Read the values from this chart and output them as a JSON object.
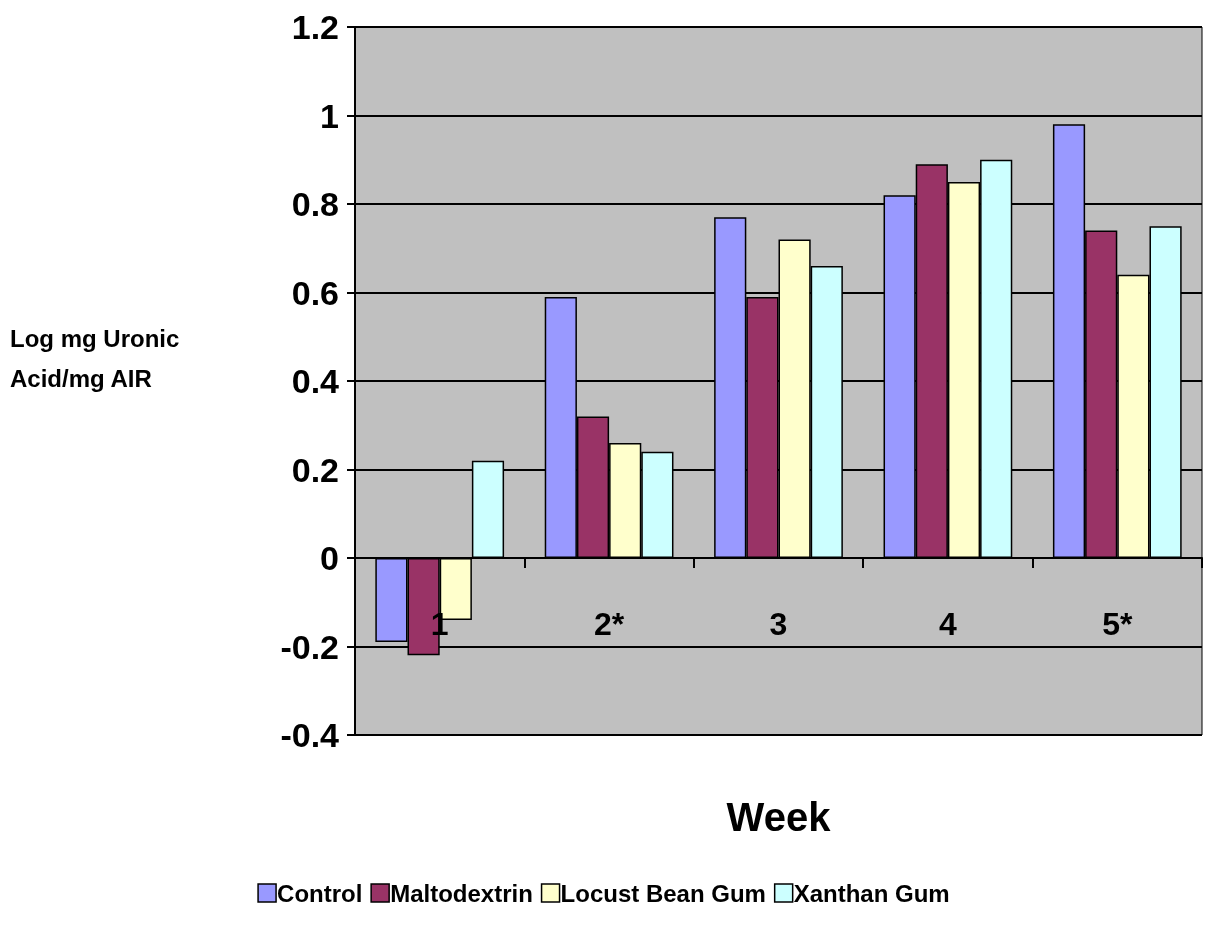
{
  "chart_data": {
    "type": "bar",
    "xlabel": "Week",
    "ylabel": "Log mg Uronic Acid/mg AIR",
    "categories": [
      "1",
      "2*",
      "3",
      "4",
      "5*"
    ],
    "series": [
      {
        "name": "Control",
        "color": "#9999ff",
        "values": [
          -0.19,
          0.59,
          0.77,
          0.82,
          0.98
        ]
      },
      {
        "name": "Maltodextrin",
        "color": "#993366",
        "values": [
          -0.22,
          0.32,
          0.59,
          0.89,
          0.74
        ]
      },
      {
        "name": "Locust Bean Gum",
        "color": "#ffffcc",
        "values": [
          -0.14,
          0.26,
          0.72,
          0.85,
          0.64
        ]
      },
      {
        "name": "Xanthan Gum",
        "color": "#ccffff",
        "values": [
          0.22,
          0.24,
          0.66,
          0.9,
          0.75
        ]
      }
    ],
    "ylim": [
      -0.4,
      1.2
    ],
    "yticks": [
      -0.4,
      -0.2,
      0,
      0.2,
      0.4,
      0.6,
      0.8,
      1,
      1.2
    ],
    "grid": "y",
    "legend": "bottom"
  }
}
